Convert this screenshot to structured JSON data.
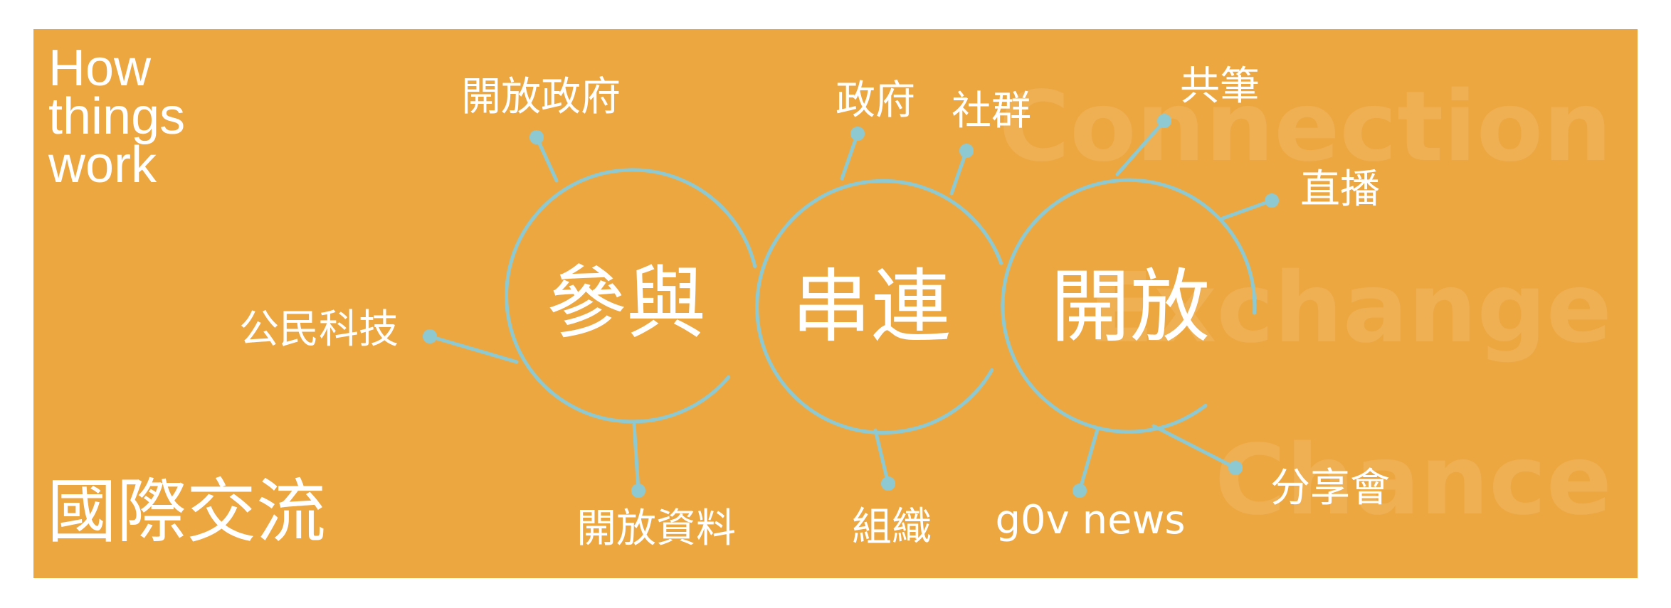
{
  "tagline": [
    "How",
    "things",
    "work"
  ],
  "footer_title": "國際交流",
  "watermark": [
    "Connection",
    "Exchange",
    "Chance"
  ],
  "circles": [
    {
      "id": "participation",
      "label": "參與"
    },
    {
      "id": "connection",
      "label": "串連"
    },
    {
      "id": "openness",
      "label": "開放"
    }
  ],
  "topics": [
    {
      "label": "開放政府",
      "circle": "participation"
    },
    {
      "label": "公民科技",
      "circle": "participation"
    },
    {
      "label": "開放資料",
      "circle": "participation"
    },
    {
      "label": "政府",
      "circle": "connection"
    },
    {
      "label": "社群",
      "circle": "connection"
    },
    {
      "label": "組織",
      "circle": "connection"
    },
    {
      "label": "共筆",
      "circle": "openness"
    },
    {
      "label": "直播",
      "circle": "openness"
    },
    {
      "label": "g0v news",
      "circle": "openness"
    },
    {
      "label": "分享會",
      "circle": "openness"
    }
  ],
  "colors": {
    "background": "#eda740",
    "accent": "#8ec9d2",
    "text": "#ffffff"
  }
}
